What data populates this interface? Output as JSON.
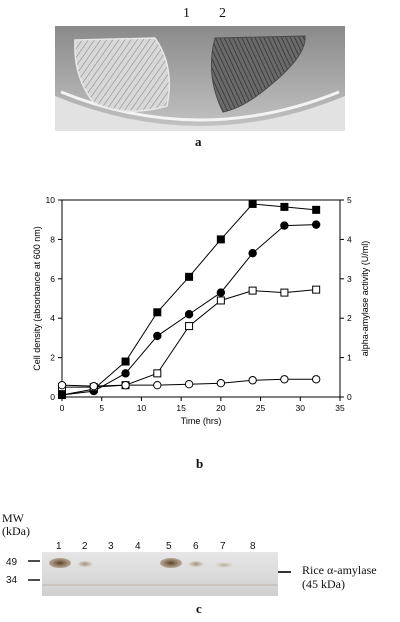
{
  "panel_a": {
    "lane_labels": [
      "1",
      "2"
    ],
    "caption": "a"
  },
  "panel_b": {
    "caption": "b"
  },
  "panel_c": {
    "mw_header": [
      "MW",
      "(kDa)"
    ],
    "mw_markers": [
      "49",
      "34"
    ],
    "lane_labels": [
      "1",
      "2",
      "3",
      "4",
      "5",
      "6",
      "7",
      "8"
    ],
    "band_label": [
      "Rice α-amylase",
      "(45 kDa)"
    ],
    "caption": "c"
  },
  "chart_data": {
    "type": "line",
    "xlabel": "Time (hrs)",
    "ylabel": "Cell density (absorbance at 600 nm)",
    "y2label": "alpha-amylase activity (U/ml)",
    "xlim": [
      0,
      35
    ],
    "ylim": [
      0,
      10
    ],
    "y2lim": [
      0,
      5
    ],
    "xticks": [
      "0",
      "5",
      "10",
      "15",
      "20",
      "25",
      "30",
      "35"
    ],
    "yticks": [
      "0",
      "2",
      "4",
      "6",
      "8",
      "10"
    ],
    "y2ticks": [
      "0",
      "1",
      "2",
      "3",
      "4",
      "5"
    ],
    "series": [
      {
        "marker": "filled-square",
        "axis": "left",
        "color": "#000000",
        "x": [
          0,
          4,
          8,
          12,
          16,
          20,
          24,
          28,
          32
        ],
        "y": [
          0.1,
          0.4,
          1.8,
          4.3,
          6.1,
          8.0,
          9.8,
          9.65,
          9.5
        ]
      },
      {
        "marker": "filled-circle",
        "axis": "left",
        "color": "#000000",
        "x": [
          0,
          4,
          8,
          12,
          16,
          20,
          24,
          28,
          32
        ],
        "y": [
          0.1,
          0.3,
          1.2,
          3.1,
          4.2,
          5.3,
          7.3,
          8.7,
          8.75
        ]
      },
      {
        "marker": "open-square",
        "axis": "left",
        "color": "#000000",
        "x": [
          0,
          4,
          8,
          12,
          16,
          20,
          24,
          28,
          32
        ],
        "y": [
          0.5,
          0.5,
          0.6,
          1.2,
          3.6,
          4.9,
          5.4,
          5.3,
          5.45
        ]
      },
      {
        "marker": "open-circle",
        "axis": "left",
        "color": "#000000",
        "x": [
          0,
          4,
          8,
          12,
          16,
          20,
          24,
          28,
          32
        ],
        "y": [
          0.6,
          0.55,
          0.6,
          0.6,
          0.65,
          0.7,
          0.85,
          0.9,
          0.9
        ]
      }
    ]
  }
}
